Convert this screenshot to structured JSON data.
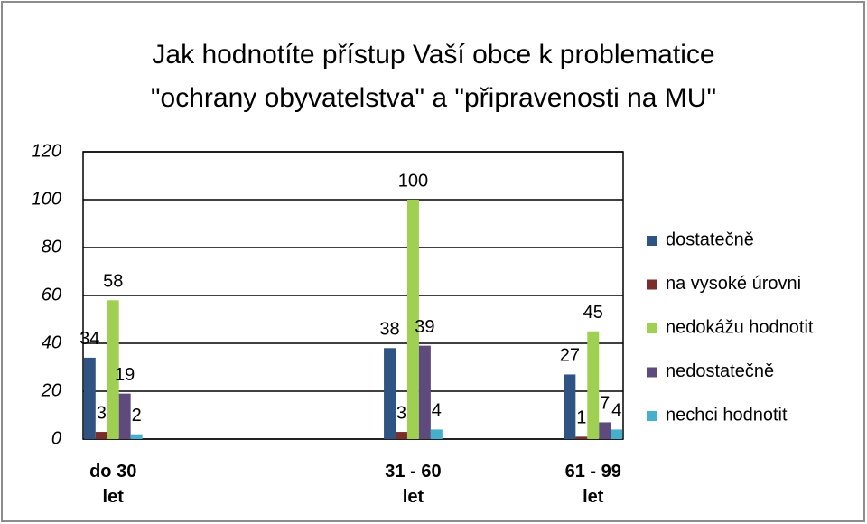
{
  "chart_data": {
    "type": "bar",
    "title": [
      "Jak hodnotíte přístup Vaší obce k problematice",
      "\"ochrany obyvatelstva\" a \"připravenosti na MU\""
    ],
    "categories": [
      "do 30 let",
      null,
      null,
      null,
      null,
      "31 - 60 let",
      null,
      null,
      "61 - 99 let"
    ],
    "series": [
      {
        "name": "dostatečně",
        "color": "#2f5383",
        "values": [
          34,
          null,
          null,
          null,
          null,
          38,
          null,
          null,
          27
        ]
      },
      {
        "name": "na vysoké úrovni",
        "color": "#7a2e2b",
        "values": [
          3,
          null,
          null,
          null,
          null,
          3,
          null,
          null,
          1
        ]
      },
      {
        "name": "nedokážu hodnotit",
        "color": "#9fd052",
        "values": [
          58,
          null,
          null,
          null,
          null,
          100,
          null,
          null,
          45
        ]
      },
      {
        "name": "nedostatečně",
        "color": "#5e4a7c",
        "values": [
          19,
          null,
          null,
          null,
          null,
          39,
          null,
          null,
          7
        ]
      },
      {
        "name": "nechci hodnotit",
        "color": "#46b0cc",
        "values": [
          2,
          null,
          null,
          null,
          null,
          4,
          null,
          null,
          4
        ]
      }
    ],
    "ylim": [
      0,
      120
    ],
    "yticks": [
      0,
      20,
      40,
      60,
      80,
      100,
      120
    ],
    "grid": true,
    "legend": "right"
  }
}
